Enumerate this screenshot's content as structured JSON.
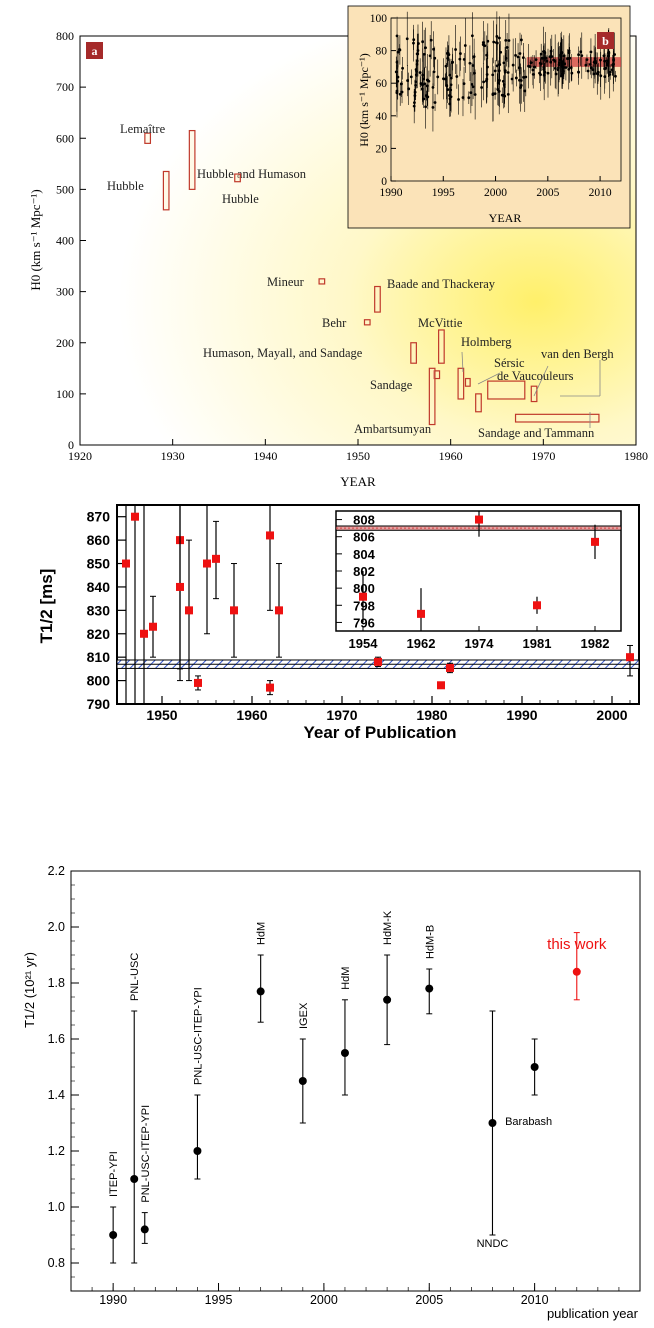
{
  "colors": {
    "box_outline": "#c0392b",
    "panel_badge": "#a52a2a",
    "marker_red": "#ee1111",
    "bg_yellow": "#fff3a0",
    "inset_bg": "#fbe3b8",
    "band_red": "#d04040",
    "band_blue": "#3355cc",
    "this_work": "#ee1111"
  },
  "chart_data": [
    {
      "type": "scatter",
      "panel_label": "a",
      "xlabel": "YEAR",
      "ylabel": "H0 (km s⁻¹ Mpc⁻¹)",
      "xlim": [
        1920,
        1980
      ],
      "ylim": [
        0,
        800
      ],
      "xticks": [
        1920,
        1930,
        1940,
        1950,
        1960,
        1970,
        1980
      ],
      "yticks": [
        0,
        100,
        200,
        300,
        400,
        500,
        600,
        700,
        800
      ],
      "grid": false,
      "measurements": [
        {
          "label": "Lemaître",
          "x": [
            1927.0,
            1927.6
          ],
          "y": [
            590,
            610
          ]
        },
        {
          "label": "Hubble",
          "x": [
            1929.0,
            1929.6
          ],
          "y": [
            460,
            535
          ]
        },
        {
          "label": "Hubble and Humason",
          "x": [
            1931.8,
            1932.4
          ],
          "y": [
            500,
            615
          ]
        },
        {
          "label": "Hubble",
          "x": [
            1936.7,
            1937.3
          ],
          "y": [
            515,
            530
          ]
        },
        {
          "label": "Mineur",
          "x": [
            1945.8,
            1946.4
          ],
          "y": [
            315,
            325
          ]
        },
        {
          "label": "Baade and Thackeray",
          "x": [
            1951.8,
            1952.4
          ],
          "y": [
            260,
            310
          ]
        },
        {
          "label": "Behr",
          "x": [
            1950.7,
            1951.3
          ],
          "y": [
            235,
            245
          ]
        },
        {
          "label": "McVittie",
          "x": [
            1958.7,
            1959.3
          ],
          "y": [
            160,
            225
          ]
        },
        {
          "label": "Humason, Mayall, and Sandage",
          "x": [
            1955.7,
            1956.3
          ],
          "y": [
            160,
            200
          ]
        },
        {
          "label": "Holmberg",
          "x": [
            1958.2,
            1958.8
          ],
          "y": [
            130,
            145
          ]
        },
        {
          "label": "Sandage",
          "x": [
            1957.7,
            1958.3
          ],
          "y": [
            40,
            150
          ]
        },
        {
          "label": "Sérsic",
          "x": [
            1960.8,
            1961.4
          ],
          "y": [
            90,
            150
          ]
        },
        {
          "label": "",
          "x": [
            1961.6,
            1962.1
          ],
          "y": [
            115,
            130
          ]
        },
        {
          "label": "Ambartsumyan",
          "x": [
            1962.7,
            1963.3
          ],
          "y": [
            65,
            100
          ]
        },
        {
          "label": "de Vaucouleurs",
          "x": [
            1964.0,
            1968.0
          ],
          "y": [
            90,
            125
          ]
        },
        {
          "label": "van den Bergh",
          "x": [
            1968.7,
            1969.3
          ],
          "y": [
            85,
            115
          ]
        },
        {
          "label": "Sandage and Tammann",
          "x": [
            1967.0,
            1976.0
          ],
          "y": [
            45,
            60
          ]
        }
      ]
    },
    {
      "type": "scatter",
      "panel_label": "b",
      "xlabel": "YEAR",
      "ylabel": "H0 (km s⁻¹ Mpc⁻¹)",
      "xlim": [
        1990,
        2012
      ],
      "ylim": [
        0,
        100
      ],
      "xticks": [
        1990,
        1995,
        2000,
        2005,
        2010
      ],
      "yticks": [
        0,
        20,
        40,
        60,
        80,
        100
      ],
      "band": {
        "x": [
          2003,
          2012
        ],
        "y": [
          70,
          76
        ]
      }
    },
    {
      "type": "scatter",
      "xlabel": "Year of Publication",
      "ylabel": "T1/2 [ms]",
      "xlim": [
        1945,
        2003
      ],
      "ylim": [
        790,
        875
      ],
      "xticks": [
        1950,
        1960,
        1970,
        1980,
        1990,
        2000
      ],
      "yticks": [
        790,
        800,
        810,
        820,
        830,
        840,
        850,
        860,
        870
      ],
      "band": {
        "center": 807.0,
        "half_width": 1.8
      },
      "points": [
        {
          "x": 1946,
          "y": 850,
          "lo": 790,
          "hi": 875
        },
        {
          "x": 1947,
          "y": 870,
          "lo": 790,
          "hi": 875
        },
        {
          "x": 1948,
          "y": 820,
          "lo": 790,
          "hi": 875
        },
        {
          "x": 1949,
          "y": 823,
          "lo": 810,
          "hi": 836
        },
        {
          "x": 1952,
          "y": 860,
          "lo": 805,
          "hi": 875
        },
        {
          "x": 1952,
          "y": 840,
          "lo": 800,
          "hi": 875
        },
        {
          "x": 1953,
          "y": 830,
          "lo": 800,
          "hi": 860
        },
        {
          "x": 1954,
          "y": 799,
          "lo": 796,
          "hi": 802
        },
        {
          "x": 1955,
          "y": 850,
          "lo": 820,
          "hi": 875
        },
        {
          "x": 1956,
          "y": 852,
          "lo": 835,
          "hi": 868
        },
        {
          "x": 1958,
          "y": 830,
          "lo": 810,
          "hi": 850
        },
        {
          "x": 1962,
          "y": 797,
          "lo": 794,
          "hi": 800
        },
        {
          "x": 1962,
          "y": 862,
          "lo": 830,
          "hi": 875
        },
        {
          "x": 1963,
          "y": 830,
          "lo": 810,
          "hi": 850
        },
        {
          "x": 1974,
          "y": 808,
          "lo": 806,
          "hi": 810
        },
        {
          "x": 1981,
          "y": 798,
          "lo": 797,
          "hi": 799
        },
        {
          "x": 1982,
          "y": 805.4,
          "lo": 803.4,
          "hi": 807.4
        },
        {
          "x": 2002,
          "y": 810,
          "lo": 802,
          "hi": 815
        }
      ],
      "inset": {
        "categories": [
          "1954",
          "1962",
          "1974",
          "1981",
          "1982"
        ],
        "ylim": [
          795,
          809
        ],
        "yticks": [
          796,
          798,
          800,
          802,
          804,
          806,
          808
        ],
        "points": [
          {
            "y": 799,
            "lo": 796,
            "hi": 802
          },
          {
            "y": 797,
            "lo": 794,
            "hi": 800
          },
          {
            "y": 808,
            "lo": 806,
            "hi": 810
          },
          {
            "y": 798,
            "lo": 797,
            "hi": 799
          },
          {
            "y": 805.4,
            "lo": 803.4,
            "hi": 807.4
          }
        ],
        "band": {
          "center": 807.0,
          "half_width": 0.25
        }
      }
    },
    {
      "type": "scatter",
      "xlabel": "publication year",
      "ylabel": "T1/2 (10²¹ yr)",
      "xlim": [
        1988,
        2015
      ],
      "ylim": [
        0.7,
        2.2
      ],
      "xticks": [
        1990,
        1995,
        2000,
        2005,
        2010
      ],
      "yticks": [
        0.8,
        1.0,
        1.2,
        1.4,
        1.6,
        1.8,
        2.0,
        2.2
      ],
      "points": [
        {
          "label": "ITEP-YPI",
          "x": 1990,
          "y": 0.9,
          "lo": 0.8,
          "hi": 1.0
        },
        {
          "label": "PNL-USC",
          "x": 1991,
          "y": 1.1,
          "lo": 0.8,
          "hi": 1.7
        },
        {
          "label": "PNL-USC-ITEP-YPI",
          "x": 1991.5,
          "y": 0.92,
          "lo": 0.87,
          "hi": 0.98
        },
        {
          "label": "PNL-USC-ITEP-YPI",
          "x": 1994,
          "y": 1.2,
          "lo": 1.1,
          "hi": 1.4
        },
        {
          "label": "HdM",
          "x": 1997,
          "y": 1.77,
          "lo": 1.66,
          "hi": 1.9
        },
        {
          "label": "IGEX",
          "x": 1999,
          "y": 1.45,
          "lo": 1.3,
          "hi": 1.6
        },
        {
          "label": "HdM",
          "x": 2001,
          "y": 1.55,
          "lo": 1.4,
          "hi": 1.74
        },
        {
          "label": "HdM-K",
          "x": 2003,
          "y": 1.74,
          "lo": 1.58,
          "hi": 1.9
        },
        {
          "label": "HdM-B",
          "x": 2005,
          "y": 1.78,
          "lo": 1.69,
          "hi": 1.85
        },
        {
          "label": "NNDC",
          "x": 2008,
          "y": 1.3,
          "lo": 0.9,
          "hi": 1.7
        },
        {
          "label": "Barabash",
          "x": 2010,
          "y": 1.5,
          "lo": 1.4,
          "hi": 1.6
        },
        {
          "label": "this work",
          "x": 2012,
          "y": 1.84,
          "lo": 1.74,
          "hi": 1.98
        }
      ]
    }
  ]
}
